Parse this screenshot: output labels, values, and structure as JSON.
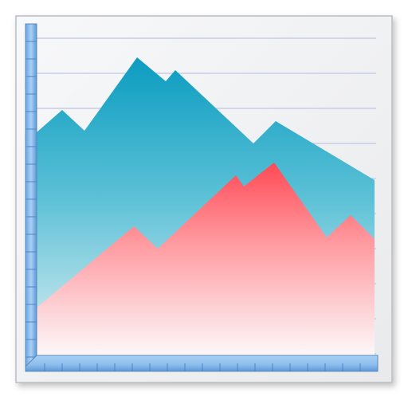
{
  "icon": {
    "name": "area-chart-icon",
    "kind": "two overlapping mountain-shaped area series on a ruled card",
    "series": [
      {
        "color_top": "#0b9cc0",
        "color_bottom": "#d9eef3",
        "values": [
          0.62,
          0.69,
          0.63,
          0.93,
          0.84,
          0.87,
          0.61,
          0.68,
          0.5
        ]
      },
      {
        "color_top": "#ff4a55",
        "color_bottom": "#ffffff",
        "values": [
          0.17,
          0.38,
          0.31,
          0.52,
          0.48,
          0.58,
          0.34,
          0.41,
          0.34
        ]
      }
    ],
    "colors": {
      "card": "#f2f3f5",
      "card_border": "#b9bcc2",
      "grid_line": "#c9cde8",
      "axis": "#8fc0ee",
      "axis_dark": "#4b86c7"
    }
  }
}
